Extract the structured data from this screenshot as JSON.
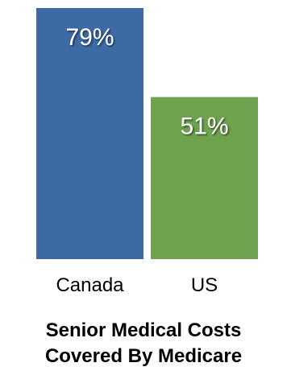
{
  "chart_data": {
    "type": "bar",
    "categories": [
      "Canada",
      "US"
    ],
    "values": [
      79,
      51
    ],
    "value_labels": [
      "79%",
      "51%"
    ],
    "title_lines": [
      "Senior Medical Costs",
      "Covered By Medicare"
    ],
    "ylim": [
      0,
      100
    ],
    "colors": [
      "#3d6aa4",
      "#6ea24f"
    ],
    "label_color": "#ffffff"
  }
}
